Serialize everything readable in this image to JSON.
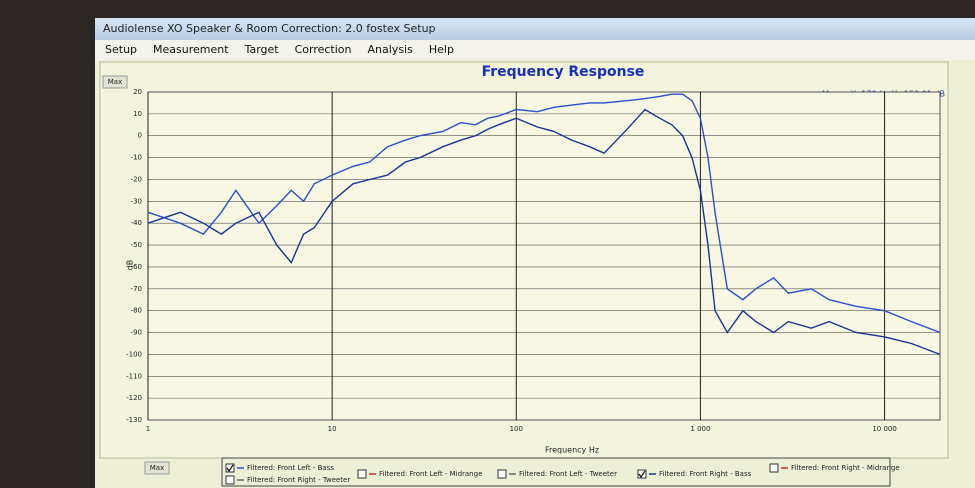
{
  "window_title": "Audiolense XO Speaker & Room Correction: 2.0 fostex Setup",
  "menu": [
    "Setup",
    "Measurement",
    "Target",
    "Correction",
    "Analysis",
    "Help"
  ],
  "buttons": [
    "Max",
    "Max"
  ],
  "chart_data": {
    "type": "line",
    "title": "Frequency Response",
    "mouse_readout": "Mouse X: 178 Hz  Y: -150.91 dB",
    "x_label": "Frequency Hz",
    "y_label": "dB",
    "x_scale": "log",
    "grid": true,
    "xlim": [
      1,
      20000
    ],
    "ylim": [
      -130,
      20
    ],
    "xticks": [
      1,
      10,
      100,
      {
        "value": 1000,
        "label": "1 000"
      },
      {
        "value": 10000,
        "label": "10 000"
      }
    ],
    "yticks": [
      -130,
      -120,
      -110,
      -100,
      -90,
      -80,
      -70,
      -60,
      -50,
      -40,
      -30,
      -20,
      -10,
      0,
      10,
      20
    ],
    "x": [
      1,
      1.5,
      2,
      2.5,
      3,
      4,
      5,
      6,
      7,
      8,
      10,
      13,
      16,
      20,
      25,
      30,
      40,
      50,
      60,
      70,
      80,
      100,
      130,
      160,
      200,
      250,
      300,
      400,
      500,
      600,
      700,
      800,
      900,
      1000,
      1100,
      1200,
      1400,
      1700,
      2000,
      2500,
      3000,
      4000,
      5000,
      7000,
      10000,
      14000,
      20000
    ],
    "series": [
      {
        "name": "Filtered: Front Left - Bass",
        "color": "#2d4fc8",
        "values": [
          -35,
          -40,
          -45,
          -35,
          -25,
          -40,
          -32,
          -25,
          -30,
          -22,
          -18,
          -14,
          -12,
          -5,
          -2,
          0,
          2,
          6,
          5,
          8,
          9,
          12,
          11,
          13,
          14,
          15,
          15,
          16,
          17,
          18,
          19,
          19,
          16,
          8,
          -10,
          -35,
          -70,
          -75,
          -70,
          -65,
          -72,
          -70,
          -75,
          -78,
          -80,
          -85,
          -90
        ]
      },
      {
        "name": "Filtered: Front Right - Bass",
        "color": "#1a3494",
        "values": [
          -40,
          -35,
          -40,
          -45,
          -40,
          -35,
          -50,
          -58,
          -45,
          -42,
          -30,
          -22,
          -20,
          -18,
          -12,
          -10,
          -5,
          -2,
          0,
          3,
          5,
          8,
          4,
          2,
          -2,
          -5,
          -8,
          3,
          12,
          8,
          5,
          0,
          -10,
          -25,
          -50,
          -80,
          -90,
          -80,
          -85,
          -90,
          -85,
          -88,
          -85,
          -90,
          -92,
          -95,
          -100
        ]
      }
    ],
    "hidden_series": [
      "Filtered: Front Left - Midrange",
      "Filtered: Front Left - Tweeter",
      "Filtered: Front Right - Midrange",
      "Filtered: Front Right - Tweeter"
    ]
  }
}
